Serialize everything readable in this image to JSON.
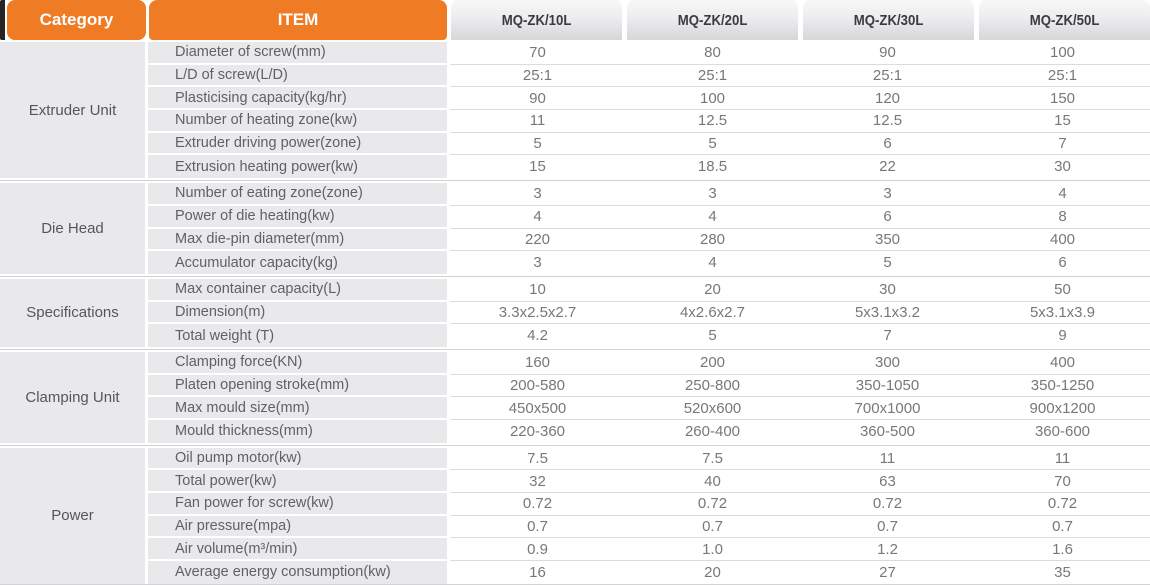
{
  "table": {
    "header": {
      "category": "Category",
      "item": "ITEM",
      "models": [
        "MQ-ZK/10L",
        "MQ-ZK/20L",
        "MQ-ZK/30L",
        "MQ-ZK/50L"
      ]
    },
    "groups": [
      {
        "category": "Extruder Unit",
        "rows": [
          {
            "item": "Diameter of screw(mm)",
            "values": [
              "70",
              "80",
              "90",
              "100"
            ]
          },
          {
            "item": "L/D of screw(L/D)",
            "values": [
              "25:1",
              "25:1",
              "25:1",
              "25:1"
            ]
          },
          {
            "item": "Plasticising capacity(kg/hr)",
            "values": [
              "90",
              "100",
              "120",
              "150"
            ]
          },
          {
            "item": "Number of heating zone(kw)",
            "values": [
              "11",
              "12.5",
              "12.5",
              "15"
            ]
          },
          {
            "item": "Extruder driving power(zone)",
            "values": [
              "5",
              "5",
              "6",
              "7"
            ]
          },
          {
            "item": "Extrusion heating power(kw)",
            "values": [
              "15",
              "18.5",
              "22",
              "30"
            ]
          }
        ]
      },
      {
        "category": "Die Head",
        "rows": [
          {
            "item": "Number of eating zone(zone)",
            "values": [
              "3",
              "3",
              "3",
              "4"
            ]
          },
          {
            "item": "Power of die heating(kw)",
            "values": [
              "4",
              "4",
              "6",
              "8"
            ]
          },
          {
            "item": "Max die-pin diameter(mm)",
            "values": [
              "220",
              "280",
              "350",
              "400"
            ]
          },
          {
            "item": "Accumulator capacity(kg)",
            "values": [
              "3",
              "4",
              "5",
              "6"
            ]
          }
        ]
      },
      {
        "category": "Specifications",
        "rows": [
          {
            "item": "Max container capacity(L)",
            "values": [
              "10",
              "20",
              "30",
              "50"
            ]
          },
          {
            "item": "Dimension(m)",
            "values": [
              "3.3x2.5x2.7",
              "4x2.6x2.7",
              "5x3.1x3.2",
              "5x3.1x3.9"
            ]
          },
          {
            "item": "Total weight (T)",
            "values": [
              "4.2",
              "5",
              "7",
              "9"
            ]
          }
        ]
      },
      {
        "category": "Clamping Unit",
        "rows": [
          {
            "item": "Clamping force(KN)",
            "values": [
              "160",
              "200",
              "300",
              "400"
            ]
          },
          {
            "item": "Platen opening stroke(mm)",
            "values": [
              "200-580",
              "250-800",
              "350-1050",
              "350-1250"
            ]
          },
          {
            "item": "Max mould size(mm)",
            "values": [
              "450x500",
              "520x600",
              "700x1000",
              "900x1200"
            ]
          },
          {
            "item": "Mould thickness(mm)",
            "values": [
              "220-360",
              "260-400",
              "360-500",
              "360-600"
            ]
          }
        ]
      },
      {
        "category": "Power",
        "rows": [
          {
            "item": "Oil pump motor(kw)",
            "values": [
              "7.5",
              "7.5",
              "11",
              "11"
            ]
          },
          {
            "item": "Total power(kw)",
            "values": [
              "32",
              "40",
              "63",
              "70"
            ]
          },
          {
            "item": "Fan power for screw(kw)",
            "values": [
              "0.72",
              "0.72",
              "0.72",
              "0.72"
            ]
          },
          {
            "item": "Air pressure(mpa)",
            "values": [
              "0.7",
              "0.7",
              "0.7",
              "0.7"
            ]
          },
          {
            "item": "Air volume(m³/min)",
            "values": [
              "0.9",
              "1.0",
              "1.2",
              "1.6"
            ]
          },
          {
            "item": "Average energy consumption(kw)",
            "values": [
              "16",
              "20",
              "27",
              "35"
            ]
          }
        ]
      }
    ]
  },
  "colors": {
    "accent_orange": "#ef7b25",
    "model_header_text": "#3b3b3d",
    "row_gray": "#e9e9eb",
    "spine_dark": "#272224"
  }
}
